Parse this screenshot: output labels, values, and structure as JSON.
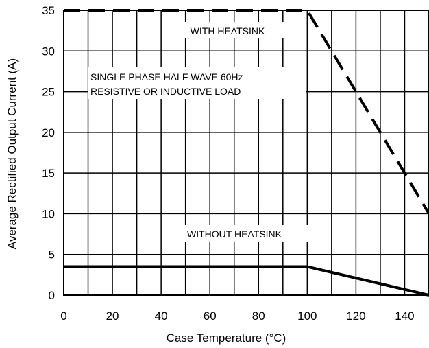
{
  "chart_data": {
    "type": "line",
    "title": "",
    "xlabel": "Case Temperature (°C)",
    "ylabel": "Average Rectified Output Current (A)",
    "xlim": [
      0,
      150
    ],
    "ylim": [
      0,
      35
    ],
    "x_ticks": [
      "0",
      "20",
      "40",
      "60",
      "80",
      "100",
      "120",
      "140"
    ],
    "y_ticks": [
      "0",
      "5",
      "10",
      "15",
      "20",
      "25",
      "30",
      "35"
    ],
    "grid": true,
    "series": [
      {
        "name": "WITH HEATSINK",
        "style": "dashed",
        "color": "#000000",
        "x": [
          0,
          100,
          150
        ],
        "y": [
          35,
          35,
          10
        ]
      },
      {
        "name": "WITHOUT HEATSINK",
        "style": "solid",
        "color": "#000000",
        "x": [
          0,
          100,
          150
        ],
        "y": [
          3.5,
          3.5,
          0
        ]
      }
    ],
    "annotations": {
      "with_heatsink": "WITH HEATSINK",
      "condition_line1": "SINGLE PHASE HALF WAVE  60Hz",
      "condition_line2": "RESISTIVE OR INDUCTIVE LOAD",
      "without_heatsink": "WITHOUT HEATSINK"
    }
  }
}
